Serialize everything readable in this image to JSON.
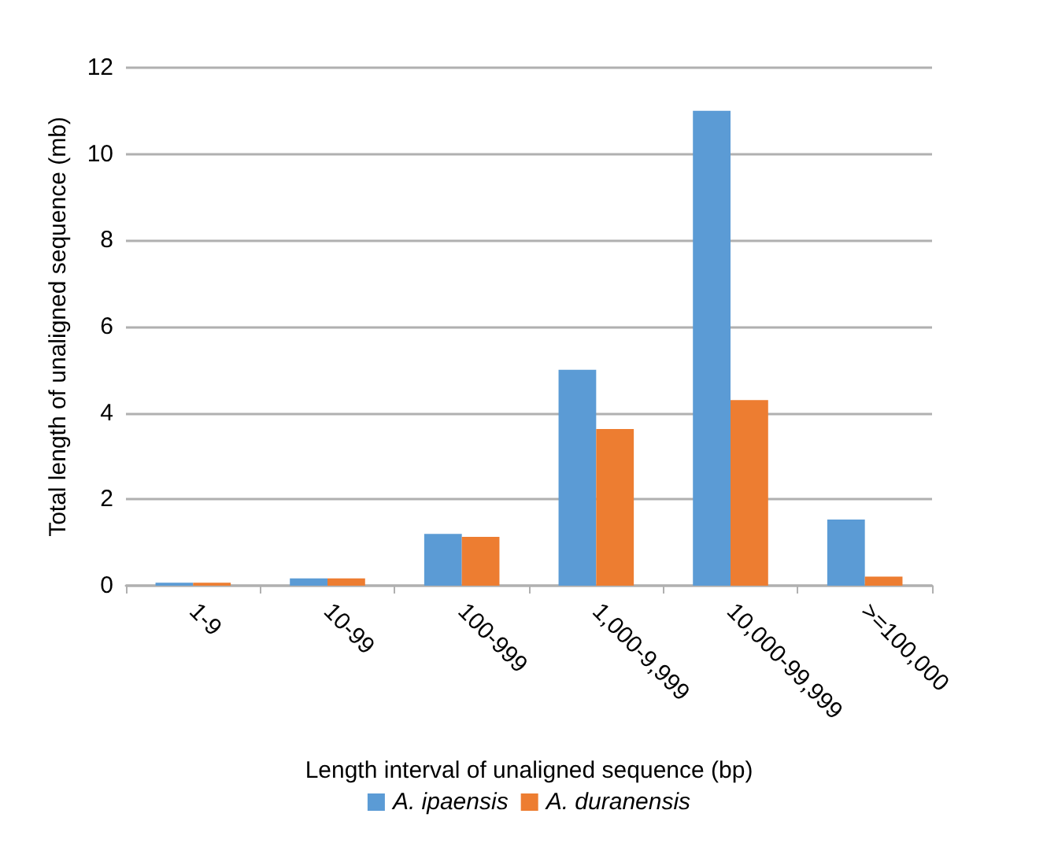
{
  "chart_data": {
    "type": "bar",
    "xlabel": "Length interval of unaligned sequence (bp)",
    "ylabel": "Total length of unaligned sequence (mb)",
    "categories": [
      "1-9",
      "10-99",
      "100-999",
      "1,000-9,999",
      "10,000-99,999",
      ">=100,000"
    ],
    "series": [
      {
        "name": "A. ipaensis",
        "color": "#5b9bd5",
        "values": [
          0.07,
          0.17,
          1.2,
          5.0,
          11.0,
          1.53
        ]
      },
      {
        "name": "A. duranensis",
        "color": "#ed7d31",
        "values": [
          0.07,
          0.17,
          1.13,
          3.63,
          4.3,
          0.21
        ]
      }
    ],
    "ylim": [
      0,
      12
    ],
    "yticks": [
      0,
      2,
      4,
      6,
      8,
      10,
      12
    ],
    "grid": "y",
    "legend": "bottom"
  }
}
